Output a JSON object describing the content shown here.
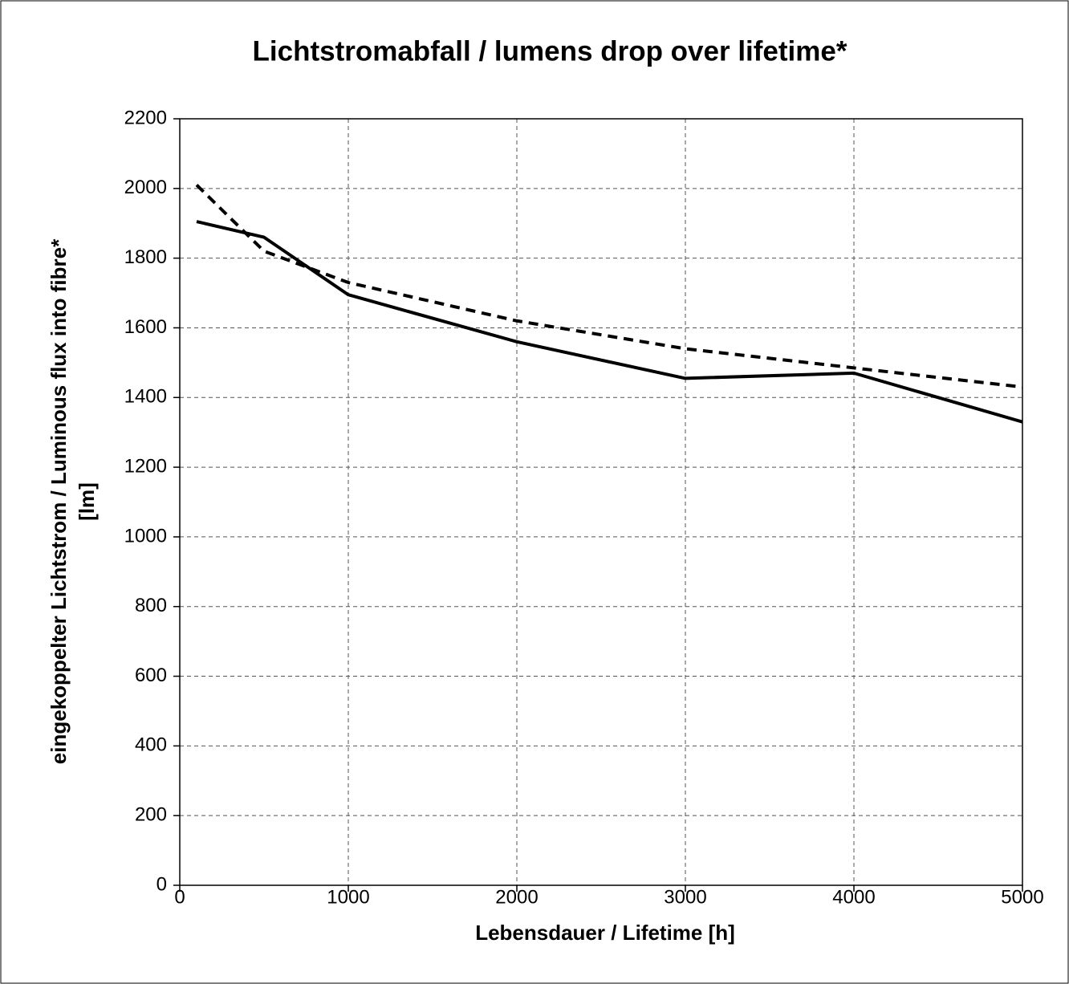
{
  "chart_data": {
    "type": "line",
    "title": "Lichtstromabfall / lumens drop over lifetime*",
    "xlabel": "Lebensdauer / Lifetime [h]",
    "ylabel": [
      "eingekoppelter Lichtstrom / Luminous flux into fibre*",
      "[lm]"
    ],
    "series": [
      {
        "color": "#000000",
        "dash": false,
        "x": [
          100,
          500,
          1000,
          2000,
          3000,
          4000,
          5000
        ],
        "values": [
          1905,
          1860,
          1695,
          1560,
          1455,
          1470,
          1330
        ]
      },
      {
        "color": "#000000",
        "dash": true,
        "x": [
          100,
          500,
          1000,
          2000,
          3000,
          4000,
          5000
        ],
        "values": [
          2010,
          1820,
          1730,
          1620,
          1540,
          1485,
          1430
        ]
      }
    ],
    "xlim": [
      0,
      5000
    ],
    "xticks": [
      0,
      1000,
      2000,
      3000,
      4000,
      5000
    ],
    "ylim": [
      0,
      2200
    ],
    "yticks": [
      0,
      200,
      400,
      600,
      800,
      1000,
      1200,
      1400,
      1600,
      1800,
      2000,
      2200
    ],
    "grid": true
  }
}
